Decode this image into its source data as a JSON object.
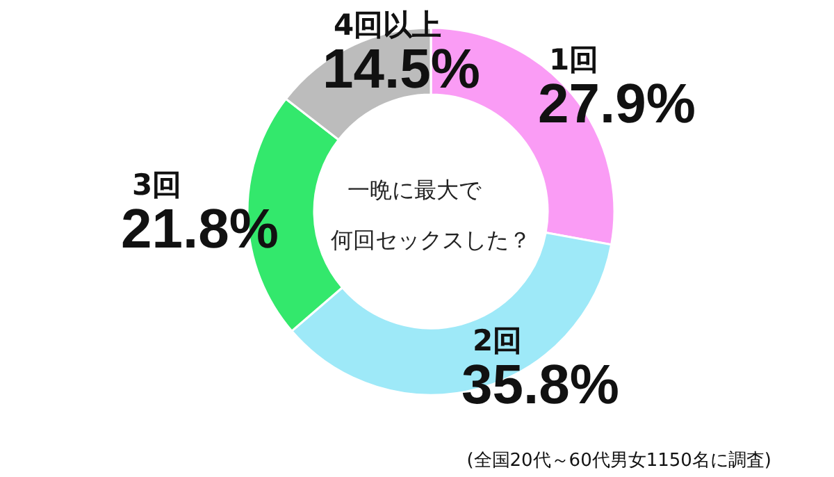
{
  "chart_data": {
    "type": "donut",
    "title": "一晩に最大で",
    "subtitle": "何回セックスした？",
    "categories": [
      "1回",
      "2回",
      "3回",
      "4回以上"
    ],
    "values": [
      27.9,
      35.8,
      21.8,
      14.5
    ],
    "colors": [
      "#fa9cf5",
      "#9ee9f8",
      "#33e86c",
      "#bcbcbc"
    ],
    "value_labels": [
      "27.9%",
      "35.8%",
      "21.8%",
      "14.5%"
    ],
    "annotations": [
      "(全国20代～60代男女1150名に調査)"
    ]
  }
}
